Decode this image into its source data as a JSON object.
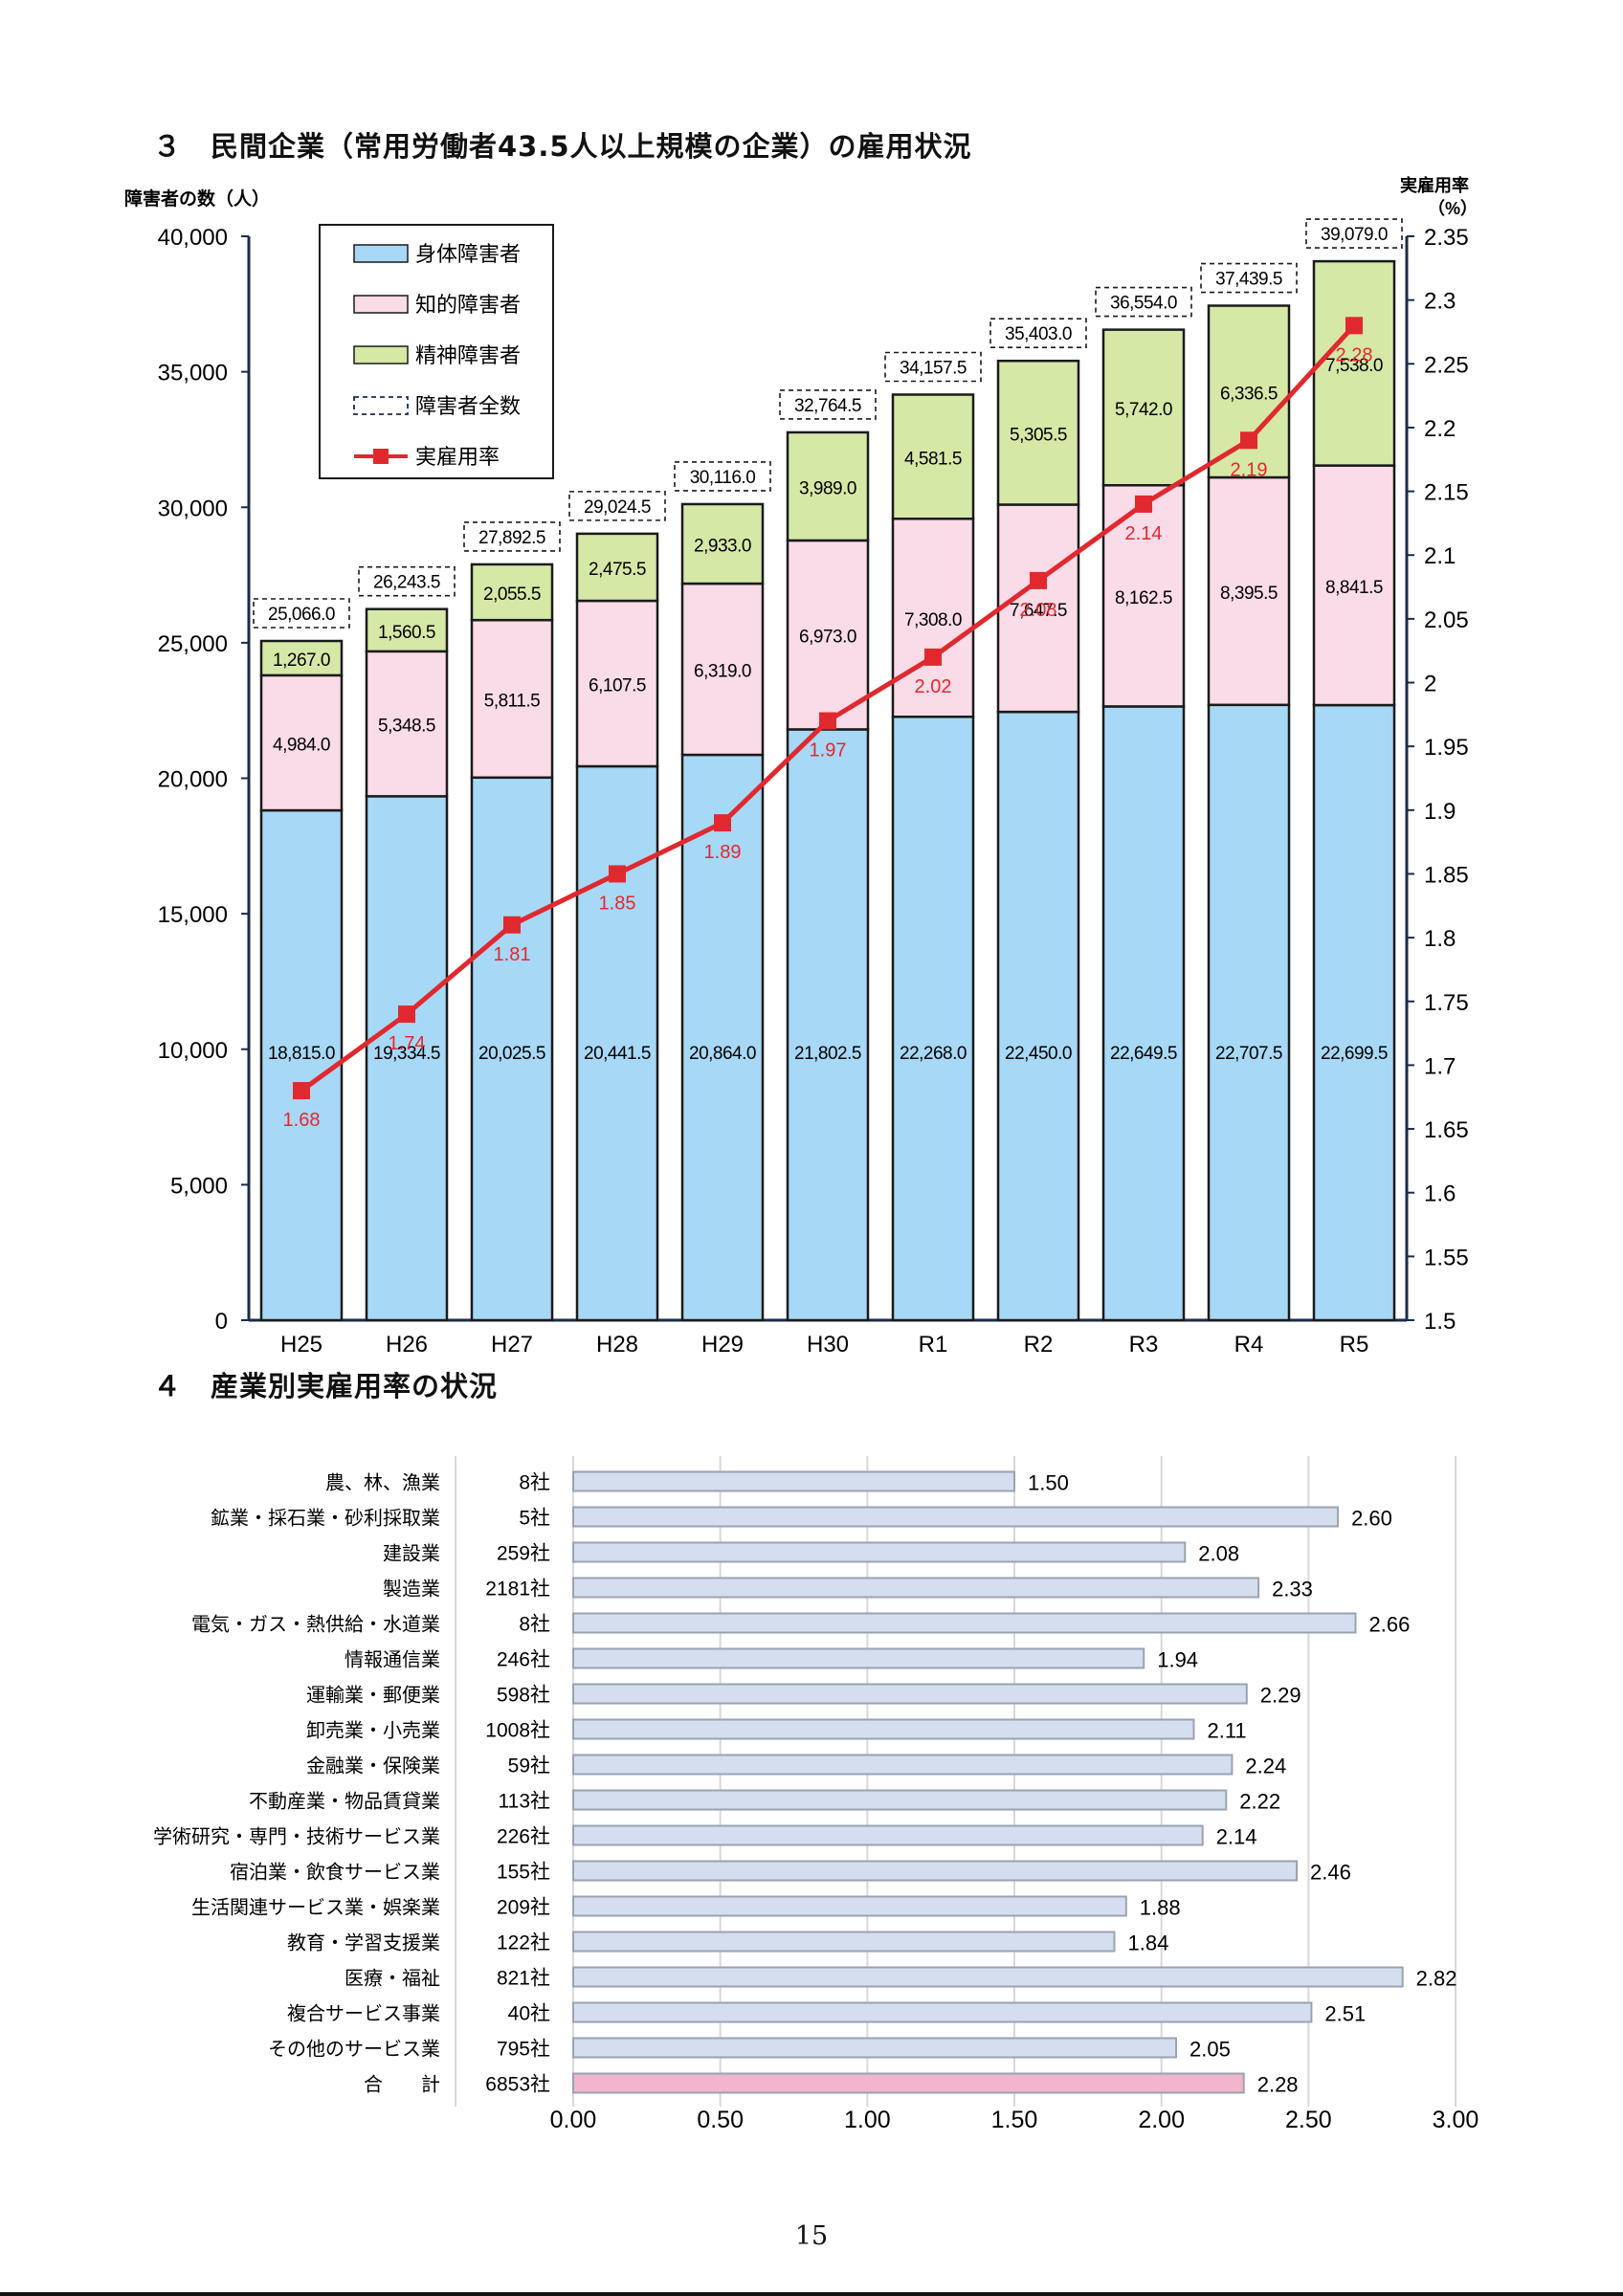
{
  "section1": {
    "title": "３　民間企業（常用労働者43.5人以上規模の企業）の雇用状況"
  },
  "section2": {
    "title": "４　産業別実雇用率の状況"
  },
  "page_number": "15",
  "colors": {
    "physical": "#a7d8f5",
    "intellectual": "#fadbe8",
    "mental": "#d6e8a6",
    "rate_line": "#e0292f",
    "industry_bar": "#d5deef",
    "industry_bar_total": "#f2b5cb",
    "industry_bar_border": "#9aa2b2"
  },
  "chart_data": [
    {
      "type": "bar",
      "stacked": true,
      "title": "",
      "categories": [
        "H25",
        "H26",
        "H27",
        "H28",
        "H29",
        "H30",
        "R1",
        "R2",
        "R3",
        "R4",
        "R5"
      ],
      "series": [
        {
          "name": "身体障害者",
          "values": [
            18815.0,
            19334.5,
            20025.5,
            20441.5,
            20864.0,
            21802.5,
            22268.0,
            22450.0,
            22649.5,
            22707.5,
            22699.5
          ],
          "labels": [
            "18,815.0",
            "19,334.5",
            "20,025.5",
            "20,441.5",
            "20,864.0",
            "21,802.5",
            "22,268.0",
            "22,450.0",
            "22,649.5",
            "22,707.5",
            "22,699.5"
          ]
        },
        {
          "name": "知的障害者",
          "values": [
            4984.0,
            5348.5,
            5811.5,
            6107.5,
            6319.0,
            6973.0,
            7308.0,
            7647.5,
            8162.5,
            8395.5,
            8841.5
          ],
          "labels": [
            "4,984.0",
            "5,348.5",
            "5,811.5",
            "6,107.5",
            "6,319.0",
            "6,973.0",
            "7,308.0",
            "7,647.5",
            "8,162.5",
            "8,395.5",
            "8,841.5"
          ]
        },
        {
          "name": "精神障害者",
          "values": [
            1267.0,
            1560.5,
            2055.5,
            2475.5,
            2933.0,
            3989.0,
            4581.5,
            5305.5,
            5742.0,
            6336.5,
            7538.0
          ],
          "labels": [
            "1,267.0",
            "1,560.5",
            "2,055.5",
            "2,475.5",
            "2,933.0",
            "3,989.0",
            "4,581.5",
            "5,305.5",
            "5,742.0",
            "6,336.5",
            "7,538.0"
          ]
        }
      ],
      "totals": {
        "name": "障害者全数",
        "values": [
          25066.0,
          26243.5,
          27892.5,
          29024.5,
          30116.0,
          32764.5,
          34157.5,
          35403.0,
          36554.0,
          37439.5,
          39079.0
        ],
        "labels": [
          "25,066.0",
          "26,243.5",
          "27,892.5",
          "29,024.5",
          "30,116.0",
          "32,764.5",
          "34,157.5",
          "35,403.0",
          "36,554.0",
          "37,439.5",
          "39,079.0"
        ]
      },
      "line_series": {
        "name": "実雇用率",
        "axis": "right",
        "values": [
          1.68,
          1.74,
          1.81,
          1.85,
          1.89,
          1.97,
          2.02,
          2.08,
          2.14,
          2.19,
          2.28
        ],
        "labels": [
          "1.68",
          "1.74",
          "1.81",
          "1.85",
          "1.89",
          "1.97",
          "2.02",
          "2.08",
          "2.14",
          "2.19",
          "2.28"
        ]
      },
      "ylabel": "障害者の数（人）",
      "ylim": [
        0,
        40000
      ],
      "yticks": [
        "0",
        "5,000",
        "10,000",
        "15,000",
        "20,000",
        "25,000",
        "30,000",
        "35,000",
        "40,000"
      ],
      "y2label_line1": "実雇用率",
      "y2label_line2": "（%）",
      "y2lim": [
        1.5,
        2.35
      ],
      "y2ticks": [
        "1.5",
        "1.55",
        "1.6",
        "1.65",
        "1.7",
        "1.75",
        "1.8",
        "1.85",
        "1.9",
        "1.95",
        "2",
        "2.05",
        "2.1",
        "2.15",
        "2.2",
        "2.25",
        "2.3",
        "2.35"
      ],
      "legend": {
        "position": "top-left",
        "entries": [
          "身体障害者",
          "知的障害者",
          "精神障害者",
          "障害者全数",
          "実雇用率"
        ]
      }
    },
    {
      "type": "bar",
      "orientation": "horizontal",
      "title": "",
      "categories": [
        "農、林、漁業",
        "鉱業・採石業・砂利採取業",
        "建設業",
        "製造業",
        "電気・ガス・熱供給・水道業",
        "情報通信業",
        "運輸業・郵便業",
        "卸売業・小売業",
        "金融業・保険業",
        "不動産業・物品賃貸業",
        "学術研究・専門・技術サービス業",
        "宿泊業・飲食サービス業",
        "生活関連サービス業・娯楽業",
        "教育・学習支援業",
        "医療・福祉",
        "複合サービス事業",
        "その他のサービス業",
        "合　　計"
      ],
      "companies": [
        "8社",
        "5社",
        "259社",
        "2181社",
        "8社",
        "246社",
        "598社",
        "1008社",
        "59社",
        "113社",
        "226社",
        "155社",
        "209社",
        "122社",
        "821社",
        "40社",
        "795社",
        "6853社"
      ],
      "values": [
        1.5,
        2.6,
        2.08,
        2.33,
        2.66,
        1.94,
        2.29,
        2.11,
        2.24,
        2.22,
        2.14,
        2.46,
        1.88,
        1.84,
        2.82,
        2.51,
        2.05,
        2.28
      ],
      "labels": [
        "1.50",
        "2.60",
        "2.08",
        "2.33",
        "2.66",
        "1.94",
        "2.29",
        "2.11",
        "2.24",
        "2.22",
        "2.14",
        "2.46",
        "1.88",
        "1.84",
        "2.82",
        "2.51",
        "2.05",
        "2.28"
      ],
      "xlim": [
        0,
        3.0
      ],
      "xticks": [
        "0.00",
        "0.50",
        "1.00",
        "1.50",
        "2.00",
        "2.50",
        "3.00"
      ]
    }
  ]
}
